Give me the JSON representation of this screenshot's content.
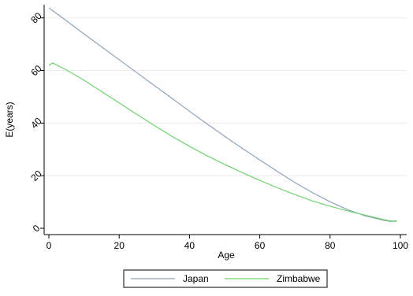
{
  "chart_data": {
    "type": "line",
    "xlabel": "Age",
    "ylabel": "E(years)",
    "xlim": [
      0,
      100
    ],
    "ylim": [
      0,
      85
    ],
    "x_ticks": [
      0,
      20,
      40,
      60,
      80,
      100
    ],
    "y_ticks": [
      0,
      20,
      40,
      60,
      80
    ],
    "grid": "horizontal",
    "legend_position": "bottom",
    "series": [
      {
        "name": "Japan",
        "color": "#8ea3bb",
        "x": [
          0,
          5,
          10,
          15,
          20,
          25,
          30,
          35,
          40,
          45,
          50,
          55,
          60,
          65,
          70,
          75,
          80,
          85,
          90,
          95,
          97,
          99
        ],
        "y": [
          83.8,
          78.9,
          73.9,
          69.0,
          64.1,
          59.2,
          54.3,
          49.4,
          44.5,
          39.7,
          35.0,
          30.4,
          26.0,
          21.6,
          17.4,
          13.6,
          10.1,
          7.1,
          4.7,
          3.1,
          2.6,
          2.7
        ]
      },
      {
        "name": "Zimbabwe",
        "color": "#6fd26f",
        "x": [
          0,
          1,
          5,
          10,
          15,
          20,
          25,
          30,
          35,
          40,
          45,
          50,
          55,
          60,
          65,
          70,
          75,
          80,
          85,
          90,
          95,
          97,
          99
        ],
        "y": [
          61.8,
          62.9,
          60.2,
          56.3,
          52.0,
          47.7,
          43.3,
          39.1,
          35.0,
          31.2,
          27.6,
          24.3,
          21.2,
          18.2,
          15.4,
          12.8,
          10.4,
          8.4,
          6.6,
          5.0,
          3.4,
          2.8,
          2.8
        ]
      }
    ]
  }
}
